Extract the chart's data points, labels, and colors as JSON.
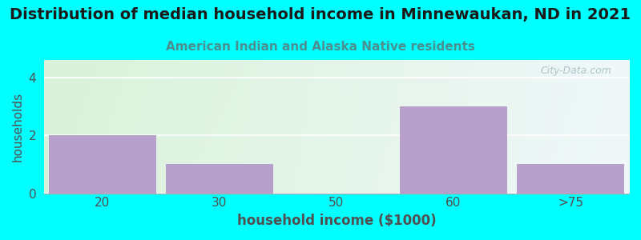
{
  "title": "Distribution of median household income in Minnewaukan, ND in 2021",
  "subtitle": "American Indian and Alaska Native residents",
  "xlabel": "household income ($1000)",
  "ylabel": "households",
  "categories": [
    "20",
    "30",
    "50",
    "60",
    ">75"
  ],
  "values": [
    2,
    1,
    0,
    3,
    1
  ],
  "bar_color": "#B8A0CC",
  "background_color": "#00FFFF",
  "title_fontsize": 14,
  "subtitle_fontsize": 11,
  "subtitle_color": "#4A9090",
  "ylabel_color": "#505050",
  "xlabel_color": "#505050",
  "tick_color": "#505050",
  "ylim": [
    0,
    4.6
  ],
  "yticks": [
    0,
    2,
    4
  ],
  "watermark": "City-Data.com",
  "bar_width": 0.92,
  "plot_bg_left": "#D8EED8",
  "plot_bg_right": "#EEF4F8"
}
